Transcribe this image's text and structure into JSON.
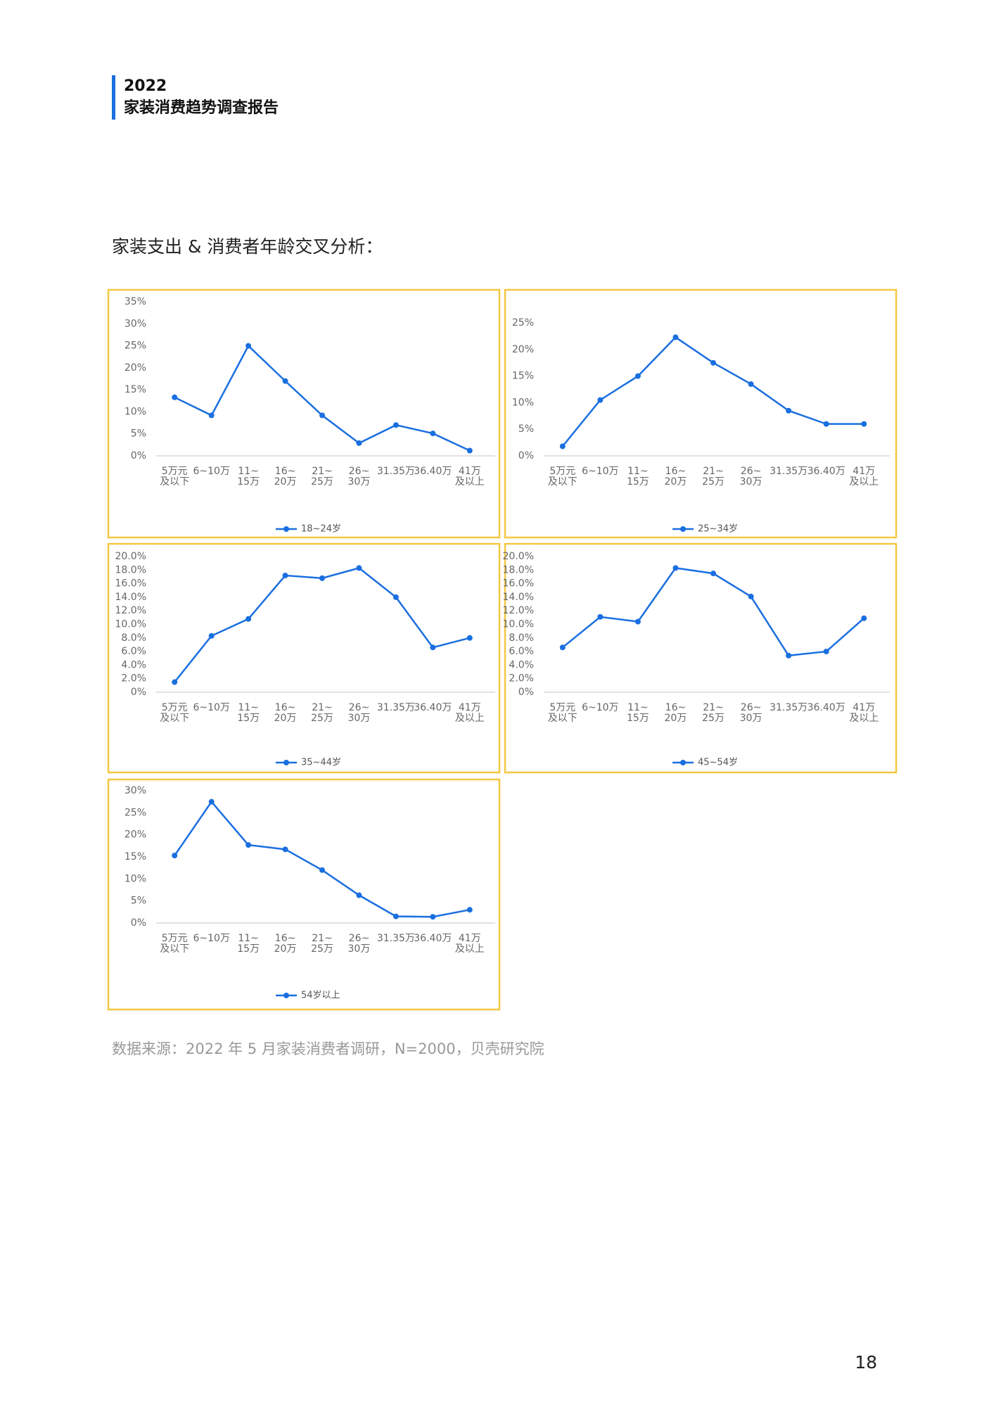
{
  "header": {
    "year": "2022",
    "title": "家装消费趋势调查报告"
  },
  "section_title": "家装支出 & 消费者年龄交叉分析：",
  "source": "数据来源：2022 年 5 月家装消费者调研，N=2000，贝壳研究院",
  "page_number": "18",
  "chart_data": [
    {
      "type": "line",
      "categories": [
        "5万元\n及以下",
        "6~10万",
        "11~\n15万",
        "16~\n20万",
        "21~\n25万",
        "26~\n30万",
        "31.35万",
        "36.40万",
        "41万\n及以上"
      ],
      "series": [
        {
          "name": "18~24岁",
          "color": "#1a6fe0",
          "values": [
            13.3,
            9.2,
            25,
            17,
            9.2,
            2.9,
            7,
            5.1,
            1.2
          ]
        }
      ],
      "ylim": [
        0,
        35
      ],
      "yticks": [
        {
          "value": 0,
          "label": "0%"
        },
        {
          "value": 5,
          "label": "5%"
        },
        {
          "value": 10,
          "label": "10%"
        },
        {
          "value": 15,
          "label": "15%"
        },
        {
          "value": 20,
          "label": "20%"
        },
        {
          "value": 25,
          "label": "25%"
        },
        {
          "value": 30,
          "label": "30%"
        },
        {
          "value": 35,
          "label": "35%"
        }
      ],
      "legend": "bottom"
    },
    {
      "type": "line",
      "categories": [
        "5万元\n及以下",
        "6~10万",
        "11~\n15万",
        "16~\n20万",
        "21~\n25万",
        "26~\n30万",
        "31.35万",
        "36.40万",
        "41万\n及以上"
      ],
      "series": [
        {
          "name": "25~34岁",
          "color": "#1a6fe0",
          "values": [
            1.8,
            10.5,
            15,
            22.3,
            17.5,
            13.5,
            8.5,
            6,
            6
          ]
        }
      ],
      "ylim": [
        0,
        25
      ],
      "yticks": [
        {
          "value": 0,
          "label": "0%"
        },
        {
          "value": 5,
          "label": "5%"
        },
        {
          "value": 10,
          "label": "10%"
        },
        {
          "value": 15,
          "label": "15%"
        },
        {
          "value": 20,
          "label": "20%"
        },
        {
          "value": 25,
          "label": "25%"
        }
      ],
      "legend": "bottom"
    },
    {
      "type": "line",
      "categories": [
        "5万元\n及以下",
        "6~10万",
        "11~\n15万",
        "16~\n20万",
        "21~\n25万",
        "26~\n30万",
        "31.35万",
        "36.40万",
        "41万\n及以上"
      ],
      "series": [
        {
          "name": "35~44岁",
          "color": "#1a6fe0",
          "values": [
            1.5,
            8.3,
            10.8,
            17.2,
            16.8,
            18.3,
            14,
            6.6,
            8
          ]
        }
      ],
      "ylim": [
        0,
        20
      ],
      "yticks": [
        {
          "value": 0,
          "label": "0%"
        },
        {
          "value": 2,
          "label": "2.0%"
        },
        {
          "value": 4,
          "label": "4.0%"
        },
        {
          "value": 6,
          "label": "6.0%"
        },
        {
          "value": 8,
          "label": "8.0%"
        },
        {
          "value": 10,
          "label": "10.0%"
        },
        {
          "value": 12,
          "label": "12.0%"
        },
        {
          "value": 14,
          "label": "14.0%"
        },
        {
          "value": 16,
          "label": "16.0%"
        },
        {
          "value": 18,
          "label": "18.0%"
        },
        {
          "value": 20,
          "label": "20.0%"
        }
      ],
      "legend": "bottom"
    },
    {
      "type": "line",
      "categories": [
        "5万元\n及以下",
        "6~10万",
        "11~\n15万",
        "16~\n20万",
        "21~\n25万",
        "26~\n30万",
        "31.35万",
        "36.40万",
        "41万\n及以上"
      ],
      "series": [
        {
          "name": "45~54岁",
          "color": "#1a6fe0",
          "values": [
            6.6,
            11.1,
            10.4,
            18.3,
            17.5,
            14.1,
            5.4,
            6,
            10.9
          ]
        }
      ],
      "ylim": [
        0,
        20
      ],
      "yticks": [
        {
          "value": 0,
          "label": "0%"
        },
        {
          "value": 2,
          "label": "2.0%"
        },
        {
          "value": 4,
          "label": "4.0%"
        },
        {
          "value": 6,
          "label": "6.0%"
        },
        {
          "value": 8,
          "label": "8.0%"
        },
        {
          "value": 10,
          "label": "10.0%"
        },
        {
          "value": 12,
          "label": "12.0%"
        },
        {
          "value": 14,
          "label": "14.0%"
        },
        {
          "value": 16,
          "label": "16.0%"
        },
        {
          "value": 18,
          "label": "18.0%"
        },
        {
          "value": 20,
          "label": "20.0%"
        }
      ],
      "legend": "bottom"
    },
    {
      "type": "line",
      "categories": [
        "5万元\n及以下",
        "6~10万",
        "11~\n15万",
        "16~\n20万",
        "21~\n25万",
        "26~\n30万",
        "31.35万",
        "36.40万",
        "41万\n及以上"
      ],
      "series": [
        {
          "name": "54岁以上",
          "color": "#1a6fe0",
          "values": [
            15.3,
            27.5,
            17.7,
            16.7,
            12,
            6.3,
            1.5,
            1.4,
            3
          ]
        }
      ],
      "ylim": [
        0,
        30
      ],
      "yticks": [
        {
          "value": 0,
          "label": "0%"
        },
        {
          "value": 5,
          "label": "5%"
        },
        {
          "value": 10,
          "label": "10%"
        },
        {
          "value": 15,
          "label": "15%"
        },
        {
          "value": 20,
          "label": "20%"
        },
        {
          "value": 25,
          "label": "25%"
        },
        {
          "value": 30,
          "label": "30%"
        }
      ],
      "legend": "bottom"
    }
  ]
}
